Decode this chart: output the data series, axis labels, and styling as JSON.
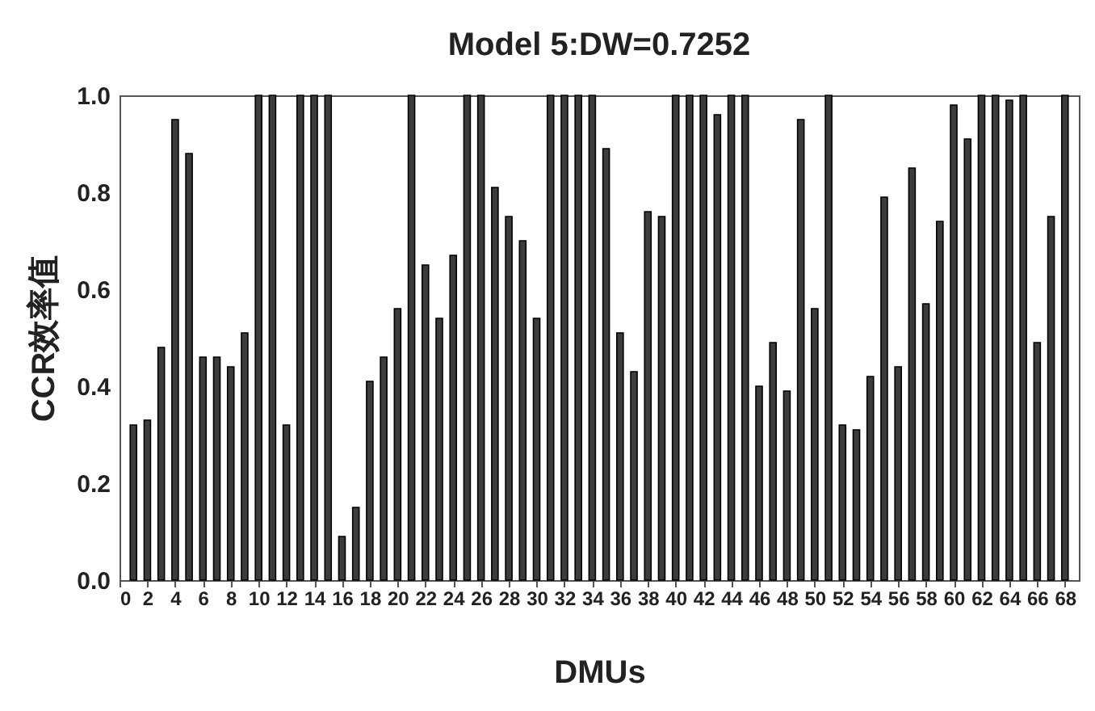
{
  "chart_data": {
    "type": "bar",
    "title": "Model 5:DW=0.7252",
    "xlabel": "DMUs",
    "ylabel": "CCR效率值",
    "x": [
      1,
      2,
      3,
      4,
      5,
      6,
      7,
      8,
      9,
      10,
      11,
      12,
      13,
      14,
      15,
      16,
      17,
      18,
      19,
      20,
      21,
      22,
      23,
      24,
      25,
      26,
      27,
      28,
      29,
      30,
      31,
      32,
      33,
      34,
      35,
      36,
      37,
      38,
      39,
      40,
      41,
      42,
      43,
      44,
      45,
      46,
      47,
      48,
      49,
      50,
      51,
      52,
      53,
      54,
      55,
      56,
      57,
      58,
      59,
      60,
      61,
      62,
      63,
      64,
      65,
      66,
      67,
      68
    ],
    "values": [
      0.32,
      0.33,
      0.48,
      0.95,
      0.88,
      0.46,
      0.46,
      0.44,
      0.51,
      1,
      1,
      0.32,
      1,
      1,
      1,
      0.09,
      0.15,
      0.41,
      0.46,
      0.56,
      1,
      0.65,
      0.54,
      0.67,
      1,
      1,
      0.81,
      0.75,
      0.7,
      0.54,
      1,
      1,
      1,
      1,
      0.89,
      0.51,
      0.43,
      0.76,
      0.75,
      1,
      1,
      1,
      0.96,
      1,
      1,
      0.4,
      0.49,
      0.39,
      0.95,
      0.56,
      1,
      0.32,
      0.31,
      0.42,
      0.79,
      0.44,
      0.85,
      0.57,
      0.74,
      0.98,
      0.91,
      1,
      1,
      0.99,
      1,
      0.49,
      0.75,
      1
    ],
    "color": "#3c3c3c",
    "xlim": [
      0,
      69
    ],
    "xticks": [
      0,
      2,
      4,
      6,
      8,
      10,
      12,
      14,
      16,
      18,
      20,
      22,
      24,
      26,
      28,
      30,
      32,
      34,
      36,
      38,
      40,
      42,
      44,
      46,
      48,
      50,
      52,
      54,
      56,
      58,
      60,
      62,
      64,
      66,
      68
    ],
    "ylim": [
      0,
      1
    ],
    "yticks": [
      {
        "value": 0,
        "label": "0.0"
      },
      {
        "value": 0.2,
        "label": "0.2"
      },
      {
        "value": 0.4,
        "label": "0.4"
      },
      {
        "value": 0.6,
        "label": "0.6"
      },
      {
        "value": 0.8,
        "label": "0.8"
      },
      {
        "value": 1,
        "label": "1.0"
      }
    ],
    "grid": false
  }
}
